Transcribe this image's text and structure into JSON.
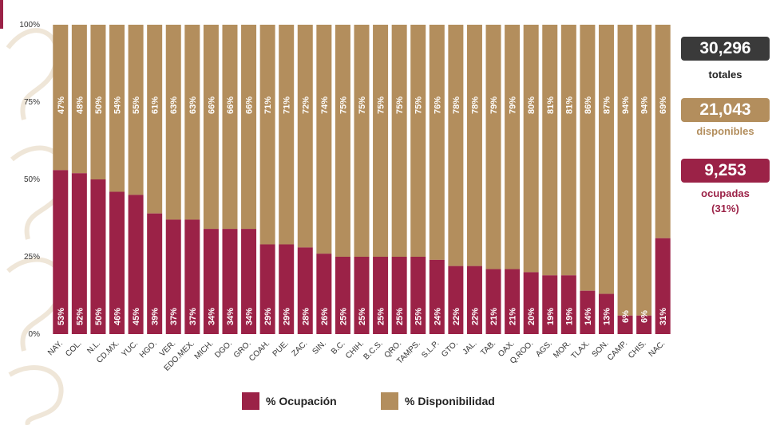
{
  "chart_data": {
    "type": "bar",
    "stacked": true,
    "orientation": "vertical",
    "categories": [
      "NAY.",
      "COL.",
      "N.L.",
      "CD.MX.",
      "YUC.",
      "HGO.",
      "VER.",
      "EDO.MEX.",
      "MICH.",
      "DGO.",
      "GRO.",
      "COAH.",
      "PUE.",
      "ZAC.",
      "SIN.",
      "B.C.",
      "CHIH.",
      "B.C.S.",
      "QRO.",
      "TAMPS.",
      "S.L.P.",
      "GTO.",
      "JAL.",
      "TAB.",
      "OAX.",
      "Q.ROO.",
      "AGS.",
      "MOR.",
      "TLAX.",
      "SON.",
      "CAMP.",
      "CHIS.",
      "NAC."
    ],
    "series": [
      {
        "name": "% Ocupación",
        "color": "#9b2247",
        "values": [
          53,
          52,
          50,
          46,
          45,
          39,
          37,
          37,
          34,
          34,
          34,
          29,
          29,
          28,
          26,
          25,
          25,
          25,
          25,
          25,
          24,
          22,
          22,
          21,
          21,
          20,
          19,
          19,
          14,
          13,
          6,
          6,
          31
        ],
        "labels": [
          "53%",
          "52%",
          "50%",
          "46%",
          "45%",
          "39%",
          "37%",
          "37%",
          "34%",
          "34%",
          "34%",
          "29%",
          "29%",
          "28%",
          "26%",
          "25%",
          "25%",
          "25%",
          "25%",
          "25%",
          "24%",
          "22%",
          "22%",
          "21%",
          "21%",
          "20%",
          "19%",
          "19%",
          "14%",
          "13%",
          "6%",
          "6%",
          "31%"
        ]
      },
      {
        "name": "% Disponibilidad",
        "color": "#b38e5d",
        "values": [
          47,
          48,
          50,
          54,
          55,
          61,
          63,
          63,
          66,
          66,
          66,
          71,
          71,
          72,
          74,
          75,
          75,
          75,
          75,
          75,
          76,
          78,
          78,
          79,
          79,
          80,
          81,
          81,
          86,
          87,
          94,
          94,
          69
        ],
        "labels": [
          "47%",
          "48%",
          "50%",
          "54%",
          "55%",
          "61%",
          "63%",
          "63%",
          "66%",
          "66%",
          "66%",
          "71%",
          "71%",
          "72%",
          "74%",
          "75%",
          "75%",
          "75%",
          "75%",
          "75%",
          "76%",
          "78%",
          "78%",
          "79%",
          "79%",
          "80%",
          "81%",
          "81%",
          "86%",
          "87%",
          "94%",
          "94%",
          "69%"
        ]
      }
    ],
    "ylim": [
      0,
      100
    ],
    "yticks": [
      "0%",
      "25%",
      "50%",
      "75%",
      "100%"
    ],
    "legend_position": "bottom-center",
    "grid": false
  },
  "summary": {
    "total_value": "30,296",
    "total_label": "totales",
    "available_value": "21,043",
    "available_label": "disponibles",
    "occupied_value": "9,253",
    "occupied_label": "ocupadas",
    "occupied_pct": "(31%)"
  },
  "legend": {
    "ocupacion": "% Ocupación",
    "disponibilidad": "% Disponibilidad"
  },
  "colors": {
    "guinda": "#9b2247",
    "dorado": "#b38e5d",
    "dark": "#3a3a3a"
  }
}
